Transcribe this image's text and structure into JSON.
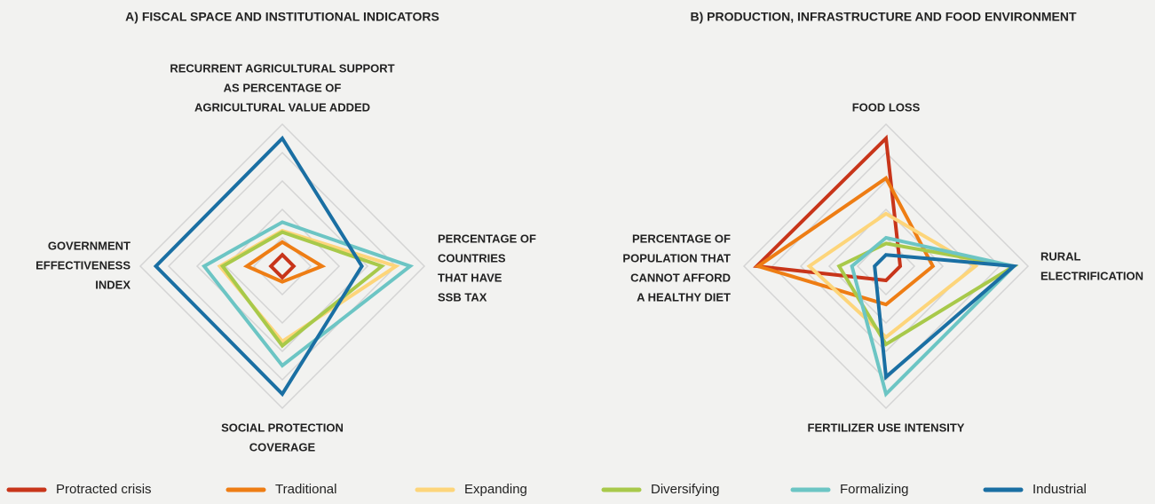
{
  "chart_data": [
    {
      "type": "radar",
      "title": "A) FISCAL SPACE AND INSTITUTIONAL INDICATORS",
      "axes": [
        [
          "RECURRENT AGRICULTURAL SUPPORT",
          "AS PERCENTAGE OF",
          "AGRICULTURAL VALUE ADDED"
        ],
        [
          "PERCENTAGE OF",
          "COUNTRIES",
          "THAT HAVE",
          "SSB TAX"
        ],
        [
          "SOCIAL PROTECTION",
          "COVERAGE"
        ],
        [
          "GOVERNMENT",
          "EFFECTIVENESS",
          "INDEX"
        ]
      ],
      "rlim": [
        0,
        1
      ],
      "rticks": [
        0.2,
        0.4,
        0.6,
        0.8,
        1.0
      ],
      "series": [
        {
          "name": "Protracted crisis",
          "color": "#c8351a",
          "values": [
            0.08,
            0.08,
            0.08,
            0.08
          ]
        },
        {
          "name": "Traditional",
          "color": "#ee7d14",
          "values": [
            0.17,
            0.28,
            0.11,
            0.25
          ]
        },
        {
          "name": "Expanding",
          "color": "#fdd57a",
          "values": [
            0.25,
            0.8,
            0.53,
            0.44
          ]
        },
        {
          "name": "Diversifying",
          "color": "#a8c94a",
          "values": [
            0.24,
            0.7,
            0.56,
            0.42
          ]
        },
        {
          "name": "Formalizing",
          "color": "#6cc5c4",
          "values": [
            0.31,
            0.9,
            0.7,
            0.55
          ]
        },
        {
          "name": "Industrial",
          "color": "#1a6fa3",
          "values": [
            0.9,
            0.56,
            0.9,
            0.89
          ]
        }
      ]
    },
    {
      "type": "radar",
      "title": "B) PRODUCTION, INFRASTRUCTURE AND FOOD ENVIRONMENT",
      "axes": [
        [
          "FOOD LOSS"
        ],
        [
          "RURAL",
          "ELECTRIFICATION"
        ],
        [
          "FERTILIZER USE INTENSITY"
        ],
        [
          "PERCENTAGE OF",
          "POPULATION THAT",
          "CANNOT AFFORD",
          "A HEALTHY DIET"
        ]
      ],
      "rlim": [
        0,
        1
      ],
      "rticks": [
        0.2,
        0.4,
        0.6,
        0.8,
        1.0
      ],
      "series": [
        {
          "values": [
            0.9,
            0.1,
            0.1,
            0.91
          ]
        },
        {
          "values": [
            0.62,
            0.33,
            0.27,
            0.9
          ]
        },
        {
          "values": [
            0.37,
            0.63,
            0.5,
            0.54
          ]
        },
        {
          "values": [
            0.16,
            0.9,
            0.55,
            0.33
          ]
        },
        {
          "values": [
            0.2,
            0.9,
            0.9,
            0.24
          ]
        },
        {
          "values": [
            0.08,
            0.9,
            0.78,
            0.08
          ]
        }
      ]
    }
  ]
}
